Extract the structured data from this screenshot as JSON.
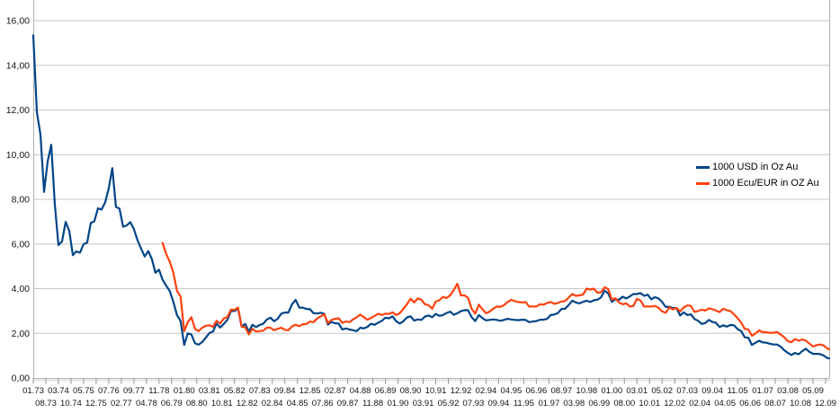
{
  "chart_data": {
    "type": "line",
    "title": "",
    "grid": true,
    "legend_position": "right-center",
    "ylim": [
      0,
      16
    ],
    "y_tick_labels": [
      "16,00",
      "14,00",
      "12,00",
      "10,00",
      "8,00",
      "6,00",
      "4,00",
      "2,00",
      "0,00"
    ],
    "x_tick_labels_row1": [
      "01.73",
      "03.74",
      "05.75",
      "07.76",
      "09.77",
      "11.78",
      "01.80",
      "03.81",
      "05.82",
      "07.83",
      "09.84",
      "12.85",
      "02.87",
      "04.88",
      "06.89",
      "08.90",
      "10.91",
      "12.92",
      "02.94",
      "04.95",
      "06.96",
      "08.97",
      "10.98",
      "01.00",
      "03.01",
      "05.02",
      "07.03",
      "09.04",
      "11.05",
      "01.07",
      "03.08",
      "05.09"
    ],
    "x_tick_labels_row2": [
      "08.73",
      "10.74",
      "12.75",
      "02.77",
      "04.78",
      "06.79",
      "08.80",
      "10.81",
      "12.82",
      "02.84",
      "04.85",
      "07.86",
      "09.87",
      "11.88",
      "01.90",
      "03.91",
      "05.92",
      "07.93",
      "09.94",
      "11.95",
      "01.97",
      "03.98",
      "06.99",
      "08.00",
      "10.01",
      "12.02",
      "02.04",
      "04.05",
      "06.06",
      "08.07",
      "10.08",
      "12.09"
    ],
    "x_range_months": 443,
    "sampling_note": "values sampled every 2 months from start date; final value is Dec 2009",
    "series": [
      {
        "name": "1000 USD in Oz Au",
        "color": "#004586",
        "start_year": 1973,
        "start_month": 1,
        "step_months": 2,
        "values": [
          15.34,
          11.9,
          10.9,
          8.33,
          9.7,
          10.44,
          7.75,
          5.95,
          6.12,
          6.99,
          6.59,
          5.5,
          5.67,
          5.61,
          5.99,
          6.06,
          6.94,
          7.02,
          7.6,
          7.54,
          7.86,
          8.49,
          9.4,
          7.66,
          7.58,
          6.77,
          6.83,
          6.98,
          6.66,
          6.17,
          5.79,
          5.44,
          5.68,
          5.32,
          4.71,
          4.85,
          4.4,
          4.13,
          3.89,
          3.4,
          2.82,
          2.55,
          1.48,
          2.0,
          1.95,
          1.55,
          1.49,
          1.61,
          1.8,
          2.01,
          2.08,
          2.44,
          2.26,
          2.42,
          2.6,
          3.0,
          3.0,
          3.1,
          2.3,
          2.42,
          2.08,
          2.38,
          2.28,
          2.37,
          2.43,
          2.62,
          2.7,
          2.54,
          2.65,
          2.88,
          2.93,
          2.93,
          3.3,
          3.5,
          3.15,
          3.15,
          3.09,
          3.08,
          2.9,
          2.89,
          2.92,
          2.87,
          2.39,
          2.51,
          2.45,
          2.44,
          2.17,
          2.22,
          2.17,
          2.14,
          2.1,
          2.25,
          2.22,
          2.29,
          2.43,
          2.38,
          2.48,
          2.56,
          2.7,
          2.67,
          2.76,
          2.54,
          2.44,
          2.54,
          2.71,
          2.76,
          2.57,
          2.62,
          2.6,
          2.75,
          2.8,
          2.72,
          2.87,
          2.78,
          2.82,
          2.91,
          2.97,
          2.83,
          2.9,
          2.99,
          3.04,
          3.03,
          2.72,
          2.55,
          2.82,
          2.68,
          2.58,
          2.6,
          2.62,
          2.6,
          2.56,
          2.6,
          2.65,
          2.62,
          2.6,
          2.59,
          2.61,
          2.6,
          2.5,
          2.53,
          2.55,
          2.61,
          2.61,
          2.65,
          2.82,
          2.84,
          2.91,
          3.09,
          3.1,
          3.27,
          3.46,
          3.38,
          3.34,
          3.41,
          3.46,
          3.4,
          3.48,
          3.5,
          3.61,
          3.91,
          3.79,
          3.41,
          3.52,
          3.5,
          3.64,
          3.56,
          3.65,
          3.76,
          3.76,
          3.8,
          3.68,
          3.73,
          3.52,
          3.62,
          3.56,
          3.4,
          3.18,
          3.19,
          3.13,
          3.13,
          2.8,
          2.94,
          2.82,
          2.85,
          2.64,
          2.56,
          2.42,
          2.46,
          2.6,
          2.51,
          2.47,
          2.28,
          2.36,
          2.3,
          2.37,
          2.36,
          2.19,
          2.1,
          1.82,
          1.8,
          1.48,
          1.58,
          1.67,
          1.59,
          1.58,
          1.53,
          1.5,
          1.5,
          1.4,
          1.24,
          1.12,
          1.03,
          1.12,
          1.06,
          1.2,
          1.31,
          1.17,
          1.08,
          1.08,
          1.07,
          1.0,
          0.89,
          0.88
        ]
      },
      {
        "name": "1000 Ecu/EUR in OZ Au",
        "color": "#ff420e",
        "start_year": 1979,
        "start_month": 1,
        "step_months": 2,
        "values": [
          6.05,
          5.55,
          5.2,
          4.7,
          3.9,
          3.65,
          2.1,
          2.5,
          2.72,
          2.2,
          2.1,
          2.25,
          2.34,
          2.36,
          2.29,
          2.56,
          2.44,
          2.66,
          2.73,
          3.06,
          3.05,
          3.15,
          2.3,
          2.27,
          1.95,
          2.2,
          2.08,
          2.1,
          2.12,
          2.25,
          2.25,
          2.14,
          2.2,
          2.25,
          2.16,
          2.14,
          2.31,
          2.38,
          2.32,
          2.41,
          2.42,
          2.53,
          2.5,
          2.66,
          2.76,
          2.85,
          2.46,
          2.6,
          2.65,
          2.67,
          2.47,
          2.53,
          2.5,
          2.62,
          2.72,
          2.84,
          2.72,
          2.61,
          2.69,
          2.78,
          2.88,
          2.82,
          2.88,
          2.87,
          2.94,
          2.82,
          2.9,
          3.1,
          3.3,
          3.55,
          3.38,
          3.56,
          3.5,
          3.3,
          3.26,
          3.1,
          3.42,
          3.48,
          3.63,
          3.58,
          3.7,
          3.93,
          4.22,
          3.7,
          3.7,
          3.58,
          3.1,
          2.88,
          3.28,
          3.08,
          2.9,
          2.97,
          3.1,
          3.2,
          3.18,
          3.26,
          3.4,
          3.5,
          3.44,
          3.4,
          3.38,
          3.4,
          3.2,
          3.2,
          3.2,
          3.3,
          3.28,
          3.36,
          3.4,
          3.32,
          3.36,
          3.42,
          3.44,
          3.6,
          3.76,
          3.68,
          3.7,
          3.74,
          4.0,
          3.96,
          4.0,
          3.82,
          3.84,
          4.06,
          3.98,
          3.51,
          3.57,
          3.38,
          3.3,
          3.34,
          3.2,
          3.22,
          3.54,
          3.47,
          3.2,
          3.2,
          3.2,
          3.23,
          3.14,
          2.98,
          2.92,
          3.16,
          3.07,
          3.14,
          2.98,
          3.16,
          3.25,
          3.23,
          2.96,
          3.0,
          3.06,
          3.02,
          3.12,
          3.08,
          3.02,
          2.95,
          3.1,
          3.04,
          3.0,
          2.85,
          2.68,
          2.48,
          2.2,
          2.17,
          1.89,
          2.0,
          2.13,
          2.05,
          2.05,
          2.02,
          2.03,
          2.06,
          1.94,
          1.82,
          1.65,
          1.6,
          1.74,
          1.67,
          1.73,
          1.67,
          1.54,
          1.41,
          1.47,
          1.5,
          1.45,
          1.32,
          1.29
        ]
      }
    ]
  },
  "colors": {
    "background": "#ffffff",
    "gridline": "#c6c6c6",
    "axis": "#b1b1b1",
    "tick_minor": "#c9c9c9",
    "tick_major": "#8c8c8c",
    "text": "#141414",
    "series_usd": "#004586",
    "series_eur": "#ff420e"
  }
}
